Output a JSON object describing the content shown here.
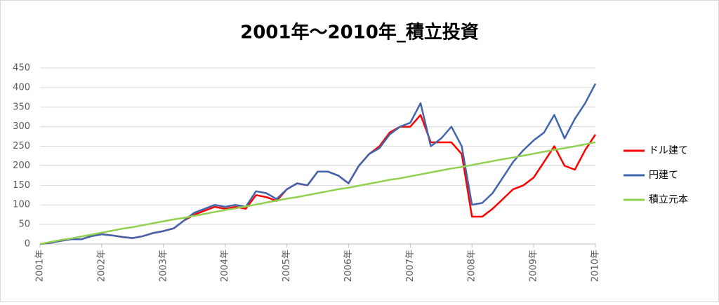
{
  "chart_data": {
    "type": "line",
    "title": "2001年～2010年_積立投資",
    "categories": [
      "2001年",
      null,
      null,
      null,
      null,
      null,
      "2002年",
      null,
      null,
      null,
      null,
      null,
      "2003年",
      null,
      null,
      null,
      null,
      null,
      "2004年",
      null,
      null,
      null,
      null,
      null,
      "2005年",
      null,
      null,
      null,
      null,
      null,
      "2006年",
      null,
      null,
      null,
      null,
      null,
      "2007年",
      null,
      null,
      null,
      null,
      null,
      "2008年",
      null,
      null,
      null,
      null,
      null,
      "2009年",
      null,
      null,
      null,
      null,
      null,
      "2010年"
    ],
    "series": [
      {
        "name": "ドル建て",
        "color": "#ff0000",
        "values": [
          0,
          3,
          8,
          12,
          12,
          20,
          25,
          22,
          18,
          15,
          20,
          28,
          33,
          40,
          60,
          75,
          85,
          95,
          90,
          95,
          90,
          125,
          120,
          110,
          140,
          155,
          150,
          185,
          185,
          175,
          155,
          200,
          230,
          250,
          285,
          300,
          300,
          330,
          260,
          260,
          260,
          230,
          70,
          70,
          90,
          115,
          140,
          150,
          170,
          210,
          250,
          200,
          190,
          240,
          280
        ]
      },
      {
        "name": "円建て",
        "color": "#4065ad",
        "values": [
          0,
          3,
          8,
          12,
          12,
          20,
          25,
          22,
          18,
          15,
          20,
          28,
          33,
          40,
          60,
          80,
          90,
          100,
          95,
          100,
          95,
          135,
          130,
          115,
          140,
          155,
          150,
          185,
          185,
          175,
          155,
          200,
          230,
          245,
          280,
          300,
          310,
          360,
          250,
          270,
          300,
          250,
          100,
          105,
          130,
          170,
          210,
          240,
          265,
          285,
          330,
          270,
          320,
          360,
          410
        ]
      },
      {
        "name": "積立元本",
        "color": "#92d050",
        "values": [
          0,
          5,
          10,
          14,
          19,
          24,
          29,
          34,
          39,
          43,
          48,
          53,
          58,
          63,
          67,
          72,
          77,
          82,
          87,
          91,
          96,
          101,
          106,
          111,
          116,
          120,
          125,
          130,
          135,
          140,
          144,
          149,
          154,
          159,
          164,
          168,
          173,
          178,
          183,
          188,
          193,
          197,
          202,
          207,
          212,
          217,
          221,
          226,
          231,
          236,
          241,
          245,
          250,
          255,
          260
        ]
      }
    ],
    "ylim": [
      0,
      450
    ],
    "yticks": [
      0,
      50,
      100,
      150,
      200,
      250,
      300,
      350,
      400,
      450
    ],
    "grid": true
  }
}
